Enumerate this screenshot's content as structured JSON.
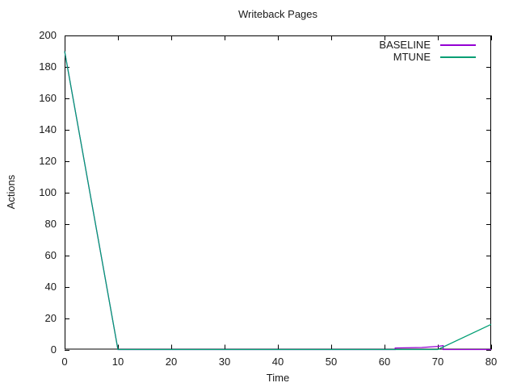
{
  "colors": {
    "background": "#ffffff",
    "axis": "#000000",
    "text": "#1a1a1a",
    "baseline_series": "#9400d3",
    "mtune_series": "#009e73"
  },
  "chart_data": {
    "type": "line",
    "title": "Writeback Pages",
    "xlabel": "Time",
    "ylabel": "Actions",
    "xlim": [
      0,
      80
    ],
    "ylim": [
      0,
      200
    ],
    "xticks": [
      0,
      10,
      20,
      30,
      40,
      50,
      60,
      70,
      80
    ],
    "yticks": [
      0,
      20,
      40,
      60,
      80,
      100,
      120,
      140,
      160,
      180,
      200
    ],
    "grid": false,
    "legend_position": "top-right-inside",
    "legend_entries": [
      "BASELINE",
      "MTUNE"
    ],
    "series": [
      {
        "name": "BASELINE",
        "color": "#9400d3",
        "points": [
          [
            0,
            190
          ],
          [
            10,
            0
          ],
          [
            62,
            0
          ],
          [
            62,
            1
          ],
          [
            67,
            1.3
          ],
          [
            70,
            2
          ],
          [
            71,
            2.5
          ],
          [
            71,
            0
          ],
          [
            80,
            0
          ]
        ]
      },
      {
        "name": "MTUNE",
        "color": "#009e73",
        "points": [
          [
            0,
            190
          ],
          [
            10,
            0
          ],
          [
            70,
            0
          ],
          [
            80,
            16
          ]
        ]
      }
    ]
  }
}
